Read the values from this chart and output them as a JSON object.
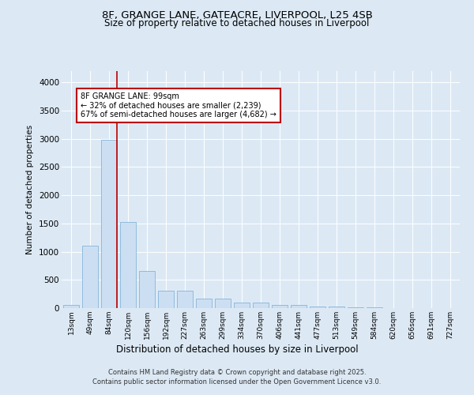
{
  "title_line1": "8F, GRANGE LANE, GATEACRE, LIVERPOOL, L25 4SB",
  "title_line2": "Size of property relative to detached houses in Liverpool",
  "xlabel": "Distribution of detached houses by size in Liverpool",
  "ylabel": "Number of detached properties",
  "categories": [
    "13sqm",
    "49sqm",
    "84sqm",
    "120sqm",
    "156sqm",
    "192sqm",
    "227sqm",
    "263sqm",
    "299sqm",
    "334sqm",
    "370sqm",
    "406sqm",
    "441sqm",
    "477sqm",
    "513sqm",
    "549sqm",
    "584sqm",
    "620sqm",
    "656sqm",
    "691sqm",
    "727sqm"
  ],
  "values": [
    50,
    1100,
    2980,
    1530,
    660,
    310,
    310,
    175,
    175,
    95,
    95,
    50,
    50,
    35,
    35,
    15,
    15,
    5,
    5,
    5,
    5
  ],
  "bar_color": "#ccdff2",
  "bar_edge_color": "#85b5d9",
  "background_color": "#dce9f5",
  "grid_color": "#ffffff",
  "vline_x_index": 2,
  "vline_color": "#bb0000",
  "annotation_text": "8F GRANGE LANE: 99sqm\n← 32% of detached houses are smaller (2,239)\n67% of semi-detached houses are larger (4,682) →",
  "annotation_box_facecolor": "#ffffff",
  "annotation_box_edgecolor": "#bb0000",
  "footer_text": "Contains HM Land Registry data © Crown copyright and database right 2025.\nContains public sector information licensed under the Open Government Licence v3.0.",
  "ylim": [
    0,
    4200
  ],
  "yticks": [
    0,
    500,
    1000,
    1500,
    2000,
    2500,
    3000,
    3500,
    4000
  ]
}
